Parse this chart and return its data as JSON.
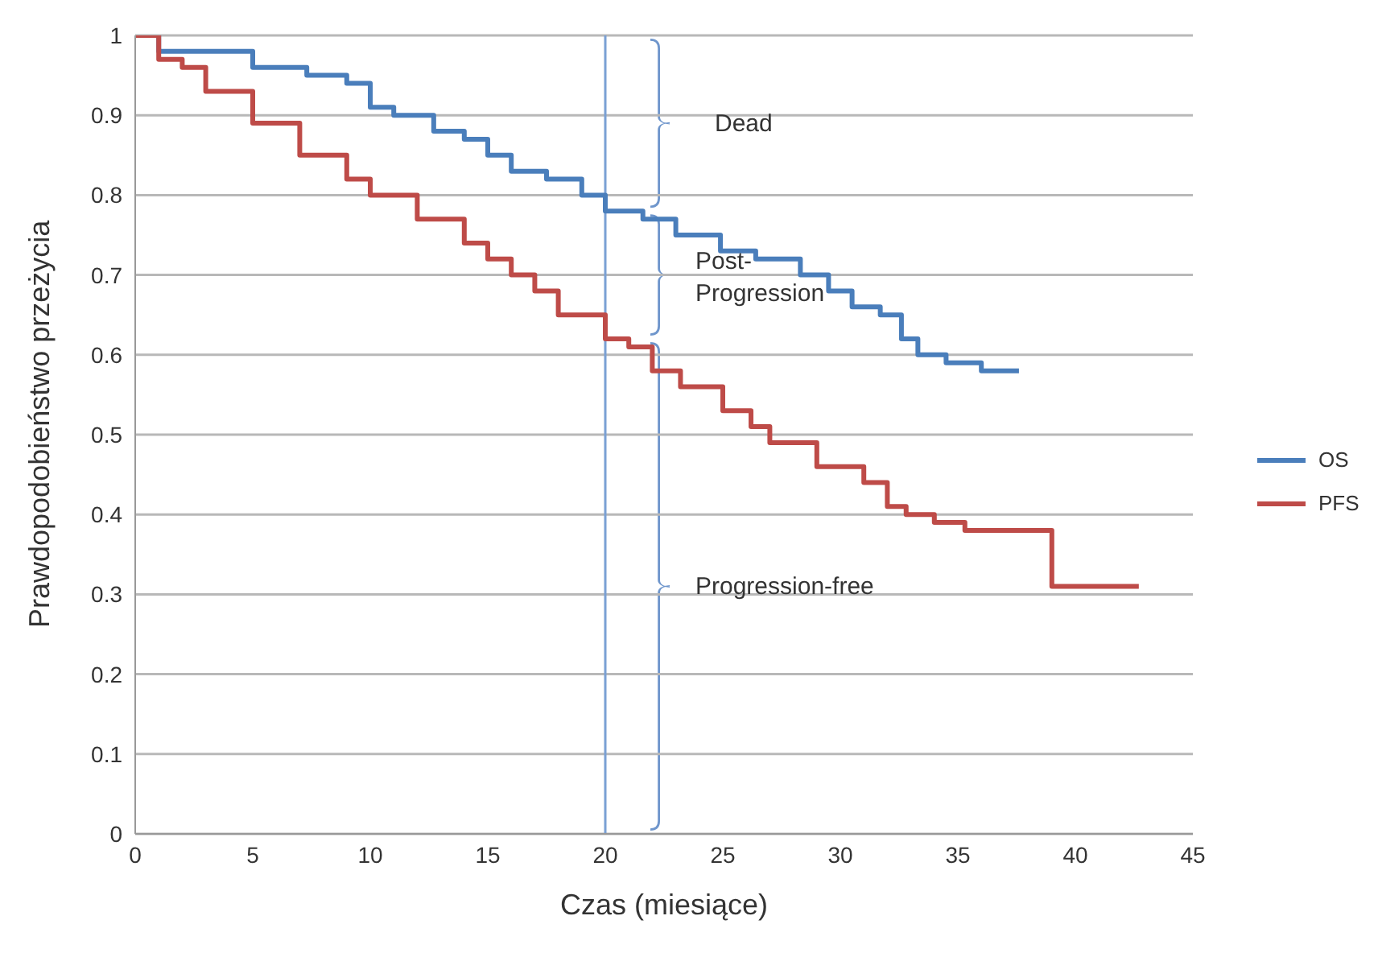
{
  "chart_data": {
    "type": "step",
    "xlabel": "Czas (miesiące)",
    "ylabel": "Prawdopodobieństwo przeżycia",
    "xlim": [
      0,
      45
    ],
    "xticks": [
      0,
      5,
      10,
      15,
      20,
      25,
      30,
      35,
      40,
      45
    ],
    "ylim": [
      0,
      1
    ],
    "yticks": [
      0,
      0.1,
      0.2,
      0.3,
      0.4,
      0.5,
      0.6,
      0.7,
      0.8,
      0.9,
      1
    ],
    "grid": "y",
    "legend": "right",
    "marker": "none",
    "line_style": "solid",
    "series": [
      {
        "name": "OS",
        "color": "#4a7ebb",
        "x": [
          0,
          1,
          4.5,
          5,
          7.3,
          9,
          10,
          11,
          12.7,
          14,
          15,
          16,
          17.5,
          19,
          20,
          21.6,
          23,
          24.9,
          26.4,
          28.3,
          29.5,
          30.5,
          31.7,
          32.6,
          33.3,
          34.5,
          36,
          37.6
        ],
        "values": [
          1,
          0.98,
          0.98,
          0.96,
          0.95,
          0.94,
          0.91,
          0.9,
          0.88,
          0.87,
          0.85,
          0.83,
          0.82,
          0.8,
          0.78,
          0.77,
          0.75,
          0.73,
          0.72,
          0.7,
          0.68,
          0.66,
          0.65,
          0.62,
          0.6,
          0.59,
          0.58,
          0.58
        ]
      },
      {
        "name": "PFS",
        "color": "#be4b48",
        "x": [
          0,
          1,
          2,
          3,
          5,
          7,
          9,
          10,
          12,
          14,
          15,
          16,
          17,
          18,
          20,
          21,
          22,
          23.2,
          25,
          26.2,
          27,
          28.7,
          29,
          31,
          32,
          32.8,
          34,
          35.3,
          39,
          42.7
        ],
        "values": [
          1,
          0.97,
          0.96,
          0.93,
          0.89,
          0.85,
          0.82,
          0.8,
          0.77,
          0.74,
          0.72,
          0.7,
          0.68,
          0.65,
          0.62,
          0.61,
          0.58,
          0.56,
          0.53,
          0.51,
          0.49,
          0.49,
          0.46,
          0.44,
          0.41,
          0.4,
          0.39,
          0.38,
          0.31,
          0.31
        ]
      }
    ],
    "ref_lines": [
      {
        "axis": "x",
        "value": 20,
        "color": "#7aa0d4"
      }
    ],
    "annotations": [
      "Dead",
      "Post-Progression",
      "Progression-free"
    ]
  }
}
